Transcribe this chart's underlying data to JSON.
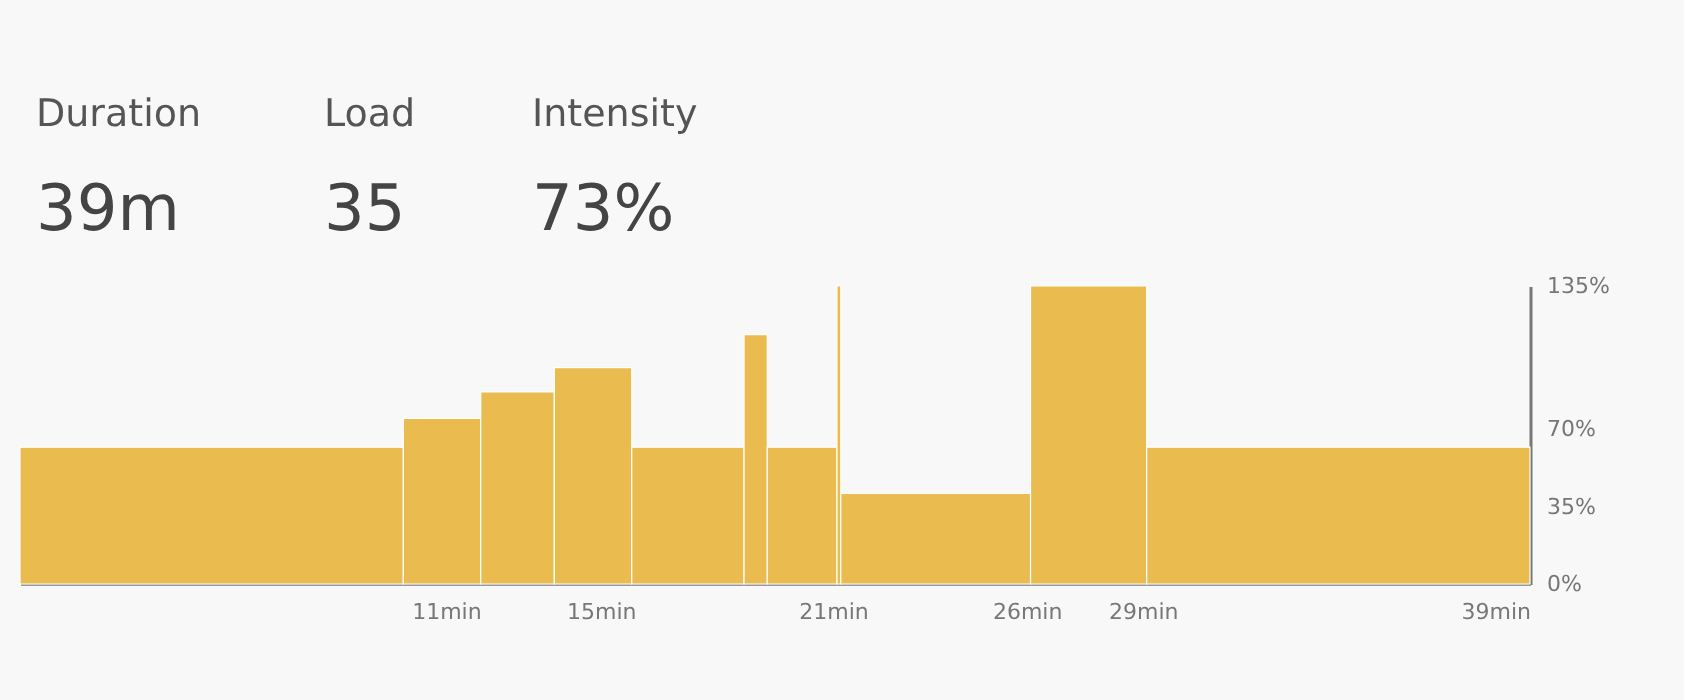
{
  "chart_data": {
    "type": "histogram",
    "bins": [
      0,
      9.9,
      11.9,
      13.8,
      15.8,
      18.7,
      19.3,
      21.1,
      21.2,
      26.1,
      29.1,
      39
    ],
    "values": [
      62,
      75,
      87,
      98,
      62,
      113,
      62,
      135,
      41,
      135,
      62
    ],
    "color": "#eabb4f",
    "xlim": [
      0,
      39
    ],
    "xticks": [
      {
        "value": 11,
        "label": "11min"
      },
      {
        "value": 15,
        "label": "15min"
      },
      {
        "value": 21,
        "label": "21min"
      },
      {
        "value": 26,
        "label": "26min"
      },
      {
        "value": 29,
        "label": "29min"
      },
      {
        "value": 39,
        "label": "39min"
      }
    ],
    "ylim": [
      0,
      135
    ],
    "yticks": [
      {
        "value": 0,
        "label": "0%"
      },
      {
        "value": 35,
        "label": "35%"
      },
      {
        "value": 70,
        "label": "70%"
      },
      {
        "value": 135,
        "label": "135%"
      }
    ],
    "grid": false,
    "annotations": [
      "Duration",
      "39m",
      "Load",
      "35",
      "Intensity",
      "73%"
    ]
  }
}
